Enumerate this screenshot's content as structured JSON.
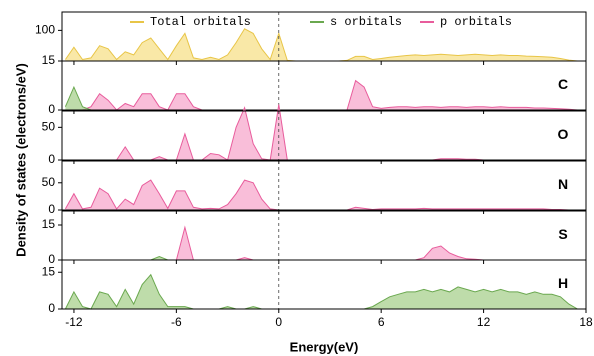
{
  "figure": {
    "xlabel": "Energy(eV)",
    "ylabel": "Density of states (electrons/eV)",
    "reference_line_x": 0
  },
  "chart_data": [
    {
      "type": "area",
      "label": null,
      "legend": [
        {
          "name": "Total orbitals",
          "color": "#e8c547"
        },
        {
          "name": "s orbitals",
          "color": "#6aa84f"
        },
        {
          "name": "p orbitals",
          "color": "#e85c9c"
        }
      ],
      "xlim": [
        -12.7,
        18
      ],
      "xticks": [
        -12,
        -6,
        0,
        6,
        12,
        18
      ],
      "ylim": [
        0,
        160
      ],
      "yticks": [
        100
      ],
      "x": [
        -12.5,
        -12,
        -11.5,
        -11,
        -10.5,
        -10,
        -9.5,
        -9,
        -8.5,
        -8,
        -7.5,
        -7,
        -6.5,
        -6,
        -5.5,
        -5,
        -4.5,
        -4,
        -3.5,
        -3,
        -2.5,
        -2,
        -1.5,
        -1,
        -0.5,
        0,
        0.5,
        1,
        1.5,
        2,
        2.5,
        3,
        3.5,
        4,
        4.5,
        5,
        5.5,
        6,
        6.5,
        7,
        7.5,
        8,
        8.5,
        9,
        9.5,
        10,
        10.5,
        11,
        11.5,
        12,
        12.5,
        13,
        13.5,
        14,
        14.5,
        15,
        15.5,
        16,
        16.5,
        17,
        17.5
      ],
      "series": [
        {
          "color": "#e8c547",
          "fill": "#f7e08a",
          "values": [
            5,
            45,
            5,
            10,
            50,
            40,
            5,
            30,
            20,
            60,
            75,
            40,
            5,
            50,
            90,
            10,
            5,
            12,
            5,
            20,
            60,
            105,
            90,
            40,
            5,
            90,
            2,
            0,
            0,
            0,
            0,
            0,
            0,
            2,
            15,
            15,
            5,
            8,
            12,
            15,
            18,
            20,
            18,
            20,
            22,
            20,
            18,
            20,
            22,
            20,
            18,
            20,
            18,
            18,
            16,
            15,
            14,
            12,
            8,
            3,
            0
          ]
        }
      ]
    },
    {
      "type": "area",
      "label": "C",
      "xlim": [
        -12.7,
        18
      ],
      "xticks": [
        -12,
        -6,
        0,
        6,
        12,
        18
      ],
      "ylim": [
        0,
        15
      ],
      "yticks": [
        0,
        15
      ],
      "x": [
        -12.5,
        -12,
        -11.5,
        -11,
        -10.5,
        -10,
        -9.5,
        -9,
        -8.5,
        -8,
        -7.5,
        -7,
        -6.5,
        -6,
        -5.5,
        -5,
        -4.5,
        -4,
        -3.5,
        -3,
        -2.5,
        -2,
        -1.5,
        -1,
        -0.5,
        0,
        0.5,
        1,
        1.5,
        2,
        2.5,
        3,
        3.5,
        4,
        4.5,
        5,
        5.5,
        6,
        6.5,
        7,
        7.5,
        8,
        8.5,
        9,
        9.5,
        10,
        10.5,
        11,
        11.5,
        12,
        12.5,
        13,
        13.5,
        14,
        14.5,
        15,
        15.5,
        16,
        16.5,
        17,
        17.5
      ],
      "series": [
        {
          "color": "#e85c9c",
          "fill": "#f7a8cc",
          "values": [
            0,
            0,
            0,
            1,
            5,
            3,
            0,
            2,
            1,
            5,
            5,
            1,
            0,
            5,
            5,
            1,
            0,
            0,
            0,
            0,
            0,
            0,
            0,
            0,
            0,
            0,
            0,
            0,
            0,
            0,
            0,
            0,
            0,
            0,
            9,
            7,
            1,
            0.5,
            0.8,
            1,
            1,
            0.8,
            1,
            1,
            0.8,
            1,
            1,
            0.8,
            1,
            1,
            0.8,
            1,
            0.8,
            0.8,
            0.8,
            0.6,
            0.6,
            0.5,
            0.4,
            0.2,
            0
          ]
        },
        {
          "color": "#6aa84f",
          "fill": "#a8d08d",
          "values": [
            1,
            7,
            1,
            0,
            0,
            0,
            0,
            0,
            0,
            0,
            0,
            0,
            0,
            0,
            0,
            0,
            0,
            0,
            0,
            0,
            0,
            0,
            0,
            0,
            0,
            0,
            0,
            0,
            0,
            0,
            0,
            0,
            0,
            0,
            0,
            0,
            0,
            0,
            0,
            0,
            0,
            0,
            0,
            0,
            0,
            0,
            0,
            0,
            0,
            0,
            0,
            0,
            0,
            0,
            0,
            0,
            0,
            0,
            0,
            0,
            0
          ]
        }
      ]
    },
    {
      "type": "area",
      "label": "O",
      "xlim": [
        -12.7,
        18
      ],
      "xticks": [
        -12,
        -6,
        0,
        6,
        12,
        18
      ],
      "ylim": [
        0,
        75
      ],
      "yticks": [
        0,
        50
      ],
      "x": [
        -12.5,
        -12,
        -11.5,
        -11,
        -10.5,
        -10,
        -9.5,
        -9,
        -8.5,
        -8,
        -7.5,
        -7,
        -6.5,
        -6,
        -5.5,
        -5,
        -4.5,
        -4,
        -3.5,
        -3,
        -2.5,
        -2,
        -1.5,
        -1,
        -0.5,
        0,
        0.5,
        1,
        1.5,
        2,
        2.5,
        3,
        3.5,
        4,
        4.5,
        5,
        5.5,
        6,
        6.5,
        7,
        7.5,
        8,
        8.5,
        9,
        9.5,
        10,
        10.5,
        11,
        11.5,
        12,
        12.5,
        13,
        13.5,
        14,
        14.5,
        15,
        15.5,
        16,
        16.5,
        17,
        17.5
      ],
      "series": [
        {
          "color": "#e85c9c",
          "fill": "#f7a8cc",
          "values": [
            0,
            0,
            0,
            0,
            0,
            0,
            0,
            20,
            0,
            0,
            0,
            5,
            0,
            0,
            40,
            0,
            0,
            10,
            8,
            0,
            50,
            80,
            25,
            2,
            0,
            85,
            0,
            0,
            0,
            0,
            0,
            0,
            0,
            0,
            0,
            0,
            0,
            0,
            0,
            0,
            0,
            0,
            0,
            0,
            2,
            2,
            2,
            1,
            1,
            0,
            0,
            0,
            0,
            0,
            0,
            0,
            0,
            0,
            0,
            0,
            0
          ]
        }
      ]
    },
    {
      "type": "area",
      "label": "N",
      "xlim": [
        -12.7,
        18
      ],
      "xticks": [
        -12,
        -6,
        0,
        6,
        12,
        18
      ],
      "ylim": [
        0,
        90
      ],
      "yticks": [
        0,
        50
      ],
      "x": [
        -12.5,
        -12,
        -11.5,
        -11,
        -10.5,
        -10,
        -9.5,
        -9,
        -8.5,
        -8,
        -7.5,
        -7,
        -6.5,
        -6,
        -5.5,
        -5,
        -4.5,
        -4,
        -3.5,
        -3,
        -2.5,
        -2,
        -1.5,
        -1,
        -0.5,
        0,
        0.5,
        1,
        1.5,
        2,
        2.5,
        3,
        3.5,
        4,
        4.5,
        5,
        5.5,
        6,
        6.5,
        7,
        7.5,
        8,
        8.5,
        9,
        9.5,
        10,
        10.5,
        11,
        11.5,
        12,
        12.5,
        13,
        13.5,
        14,
        14.5,
        15,
        15.5,
        16,
        16.5,
        17,
        17.5
      ],
      "series": [
        {
          "color": "#e85c9c",
          "fill": "#f7a8cc",
          "values": [
            2,
            30,
            2,
            5,
            40,
            30,
            2,
            20,
            10,
            45,
            55,
            30,
            3,
            35,
            35,
            5,
            2,
            3,
            2,
            10,
            30,
            55,
            50,
            20,
            2,
            0,
            0,
            0,
            0,
            0,
            0,
            0,
            0,
            0,
            5,
            3,
            1,
            2,
            2,
            2,
            2,
            2,
            3,
            2,
            2,
            2,
            2,
            2,
            2,
            2,
            2,
            2,
            2,
            2,
            2,
            2,
            2,
            1,
            1,
            0,
            0
          ]
        }
      ]
    },
    {
      "type": "area",
      "label": "S",
      "xlim": [
        -12.7,
        18
      ],
      "xticks": [
        -12,
        -6,
        0,
        6,
        12,
        18
      ],
      "ylim": [
        0,
        21
      ],
      "yticks": [
        0,
        15
      ],
      "x": [
        -12.5,
        -12,
        -11.5,
        -11,
        -10.5,
        -10,
        -9.5,
        -9,
        -8.5,
        -8,
        -7.5,
        -7,
        -6.5,
        -6,
        -5.5,
        -5,
        -4.5,
        -4,
        -3.5,
        -3,
        -2.5,
        -2,
        -1.5,
        -1,
        -0.5,
        0,
        0.5,
        1,
        1.5,
        2,
        2.5,
        3,
        3.5,
        4,
        4.5,
        5,
        5.5,
        6,
        6.5,
        7,
        7.5,
        8,
        8.5,
        9,
        9.5,
        10,
        10.5,
        11,
        11.5,
        12,
        12.5,
        13,
        13.5,
        14,
        14.5,
        15,
        15.5,
        16,
        16.5,
        17,
        17.5
      ],
      "series": [
        {
          "color": "#e85c9c",
          "fill": "#f7a8cc",
          "values": [
            0,
            0,
            0,
            0,
            0,
            0,
            0,
            0,
            0,
            0,
            0,
            0,
            0,
            0,
            14,
            0,
            0,
            0,
            0,
            0,
            0,
            1,
            0,
            0,
            0,
            0,
            0,
            0,
            0,
            0,
            0,
            0,
            0,
            0,
            0,
            0,
            0,
            0,
            0,
            0,
            0,
            0,
            1,
            5,
            6,
            3,
            1.5,
            0.5,
            0.3,
            0,
            0,
            0,
            0,
            0,
            0,
            0,
            0,
            0,
            0,
            0,
            0
          ]
        },
        {
          "color": "#6aa84f",
          "fill": "#a8d08d",
          "values": [
            0,
            0,
            0,
            0,
            0,
            0,
            0,
            0,
            0,
            0,
            0,
            1.5,
            0,
            0,
            0,
            0,
            0,
            0,
            0,
            0,
            0,
            0,
            0,
            0,
            0,
            0,
            0,
            0,
            0,
            0,
            0,
            0,
            0,
            0,
            0,
            0,
            0,
            0,
            0,
            0,
            0,
            0,
            0,
            0,
            0,
            0,
            0,
            0,
            0,
            0,
            0,
            0,
            0,
            0,
            0,
            0,
            0,
            0,
            0,
            0,
            0
          ]
        }
      ]
    },
    {
      "type": "area",
      "label": "H",
      "xlim": [
        -12.7,
        18
      ],
      "xticks": [
        -12,
        -6,
        0,
        6,
        12,
        18
      ],
      "ylim": [
        0,
        20
      ],
      "yticks": [
        0,
        15
      ],
      "x": [
        -12.5,
        -12,
        -11.5,
        -11,
        -10.5,
        -10,
        -9.5,
        -9,
        -8.5,
        -8,
        -7.5,
        -7,
        -6.5,
        -6,
        -5.5,
        -5,
        -4.5,
        -4,
        -3.5,
        -3,
        -2.5,
        -2,
        -1.5,
        -1,
        -0.5,
        0,
        0.5,
        1,
        1.5,
        2,
        2.5,
        3,
        3.5,
        4,
        4.5,
        5,
        5.5,
        6,
        6.5,
        7,
        7.5,
        8,
        8.5,
        9,
        9.5,
        10,
        10.5,
        11,
        11.5,
        12,
        12.5,
        13,
        13.5,
        14,
        14.5,
        15,
        15.5,
        16,
        16.5,
        17,
        17.5
      ],
      "series": [
        {
          "color": "#6aa84f",
          "fill": "#a8d08d",
          "values": [
            0,
            7,
            1,
            0,
            7,
            6,
            1,
            8,
            2,
            10,
            14,
            6,
            1,
            1,
            1,
            0,
            0,
            0,
            0,
            1,
            0,
            0,
            1,
            0,
            0,
            0,
            0,
            0,
            0,
            0,
            0,
            0,
            0,
            0,
            0,
            0,
            1,
            3,
            5,
            6,
            7,
            7,
            8,
            7,
            8,
            7,
            9,
            8,
            7,
            8,
            7,
            8,
            7,
            7,
            6,
            7,
            6,
            6,
            5,
            2,
            0
          ]
        }
      ]
    }
  ]
}
